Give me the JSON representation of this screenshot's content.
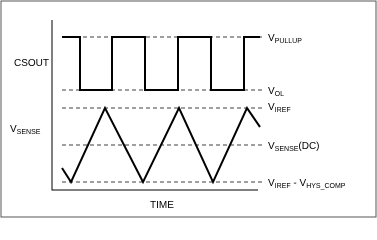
{
  "signals": {
    "csout": "CSOUT",
    "vsense": [
      "V",
      "SENSE"
    ]
  },
  "x_axis_label": "TIME",
  "levels": [
    [
      "V",
      "PULLUP"
    ],
    [
      "V",
      "OL"
    ],
    [
      "V",
      "IREF"
    ],
    [
      "V",
      "SENSE",
      "(DC)"
    ],
    [
      "V",
      "IREF",
      " - V",
      "HYS_COMP"
    ]
  ]
}
